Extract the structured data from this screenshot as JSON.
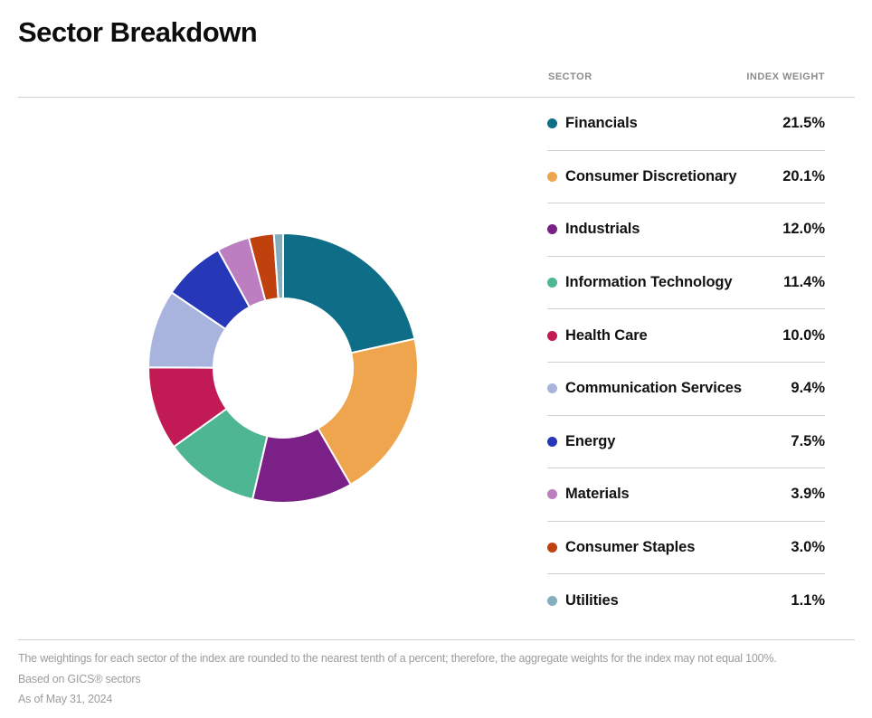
{
  "title": "Sector Breakdown",
  "table": {
    "headers": [
      "SECTOR",
      "INDEX WEIGHT"
    ],
    "rows": [
      {
        "sector": "Financials",
        "weight": "21.5%",
        "color": "#0E6E87"
      },
      {
        "sector": "Consumer Discretionary",
        "weight": "20.1%",
        "color": "#EFA54D"
      },
      {
        "sector": "Industrials",
        "weight": "12.0%",
        "color": "#7B2087"
      },
      {
        "sector": "Information Technology",
        "weight": "11.4%",
        "color": "#4FB694"
      },
      {
        "sector": "Health Care",
        "weight": "10.0%",
        "color": "#C11A55"
      },
      {
        "sector": "Communication Services",
        "weight": "9.4%",
        "color": "#A9B4DE"
      },
      {
        "sector": "Energy",
        "weight": "7.5%",
        "color": "#2638B8"
      },
      {
        "sector": "Materials",
        "weight": "3.9%",
        "color": "#BC7EC0"
      },
      {
        "sector": "Consumer Staples",
        "weight": "3.0%",
        "color": "#C0400E"
      },
      {
        "sector": "Utilities",
        "weight": "1.1%",
        "color": "#85AFBF"
      }
    ]
  },
  "chart_data": {
    "type": "pie",
    "subtype": "donut",
    "title": "Sector Breakdown",
    "categories": [
      "Financials",
      "Consumer Discretionary",
      "Industrials",
      "Information Technology",
      "Health Care",
      "Communication Services",
      "Energy",
      "Materials",
      "Consumer Staples",
      "Utilities"
    ],
    "values": [
      21.5,
      20.1,
      12.0,
      11.4,
      10.0,
      9.4,
      7.5,
      3.9,
      3.0,
      1.1
    ],
    "colors": [
      "#0E6E87",
      "#EFA54D",
      "#7B2087",
      "#4FB694",
      "#C11A55",
      "#A9B4DE",
      "#2638B8",
      "#BC7EC0",
      "#C0400E",
      "#85AFBF"
    ],
    "start_angle_deg": 0,
    "direction": "clockwise",
    "inner_radius_ratio": 0.52,
    "segment_gap_color": "#ffffff",
    "legend_position": "right-table"
  },
  "footnotes": {
    "line1": "The weightings for each sector of the index are rounded to the nearest tenth of a percent; therefore, the aggregate weights for the index may not equal 100%.",
    "line2": "Based on GICS® sectors",
    "line3": "As of May 31, 2024"
  }
}
